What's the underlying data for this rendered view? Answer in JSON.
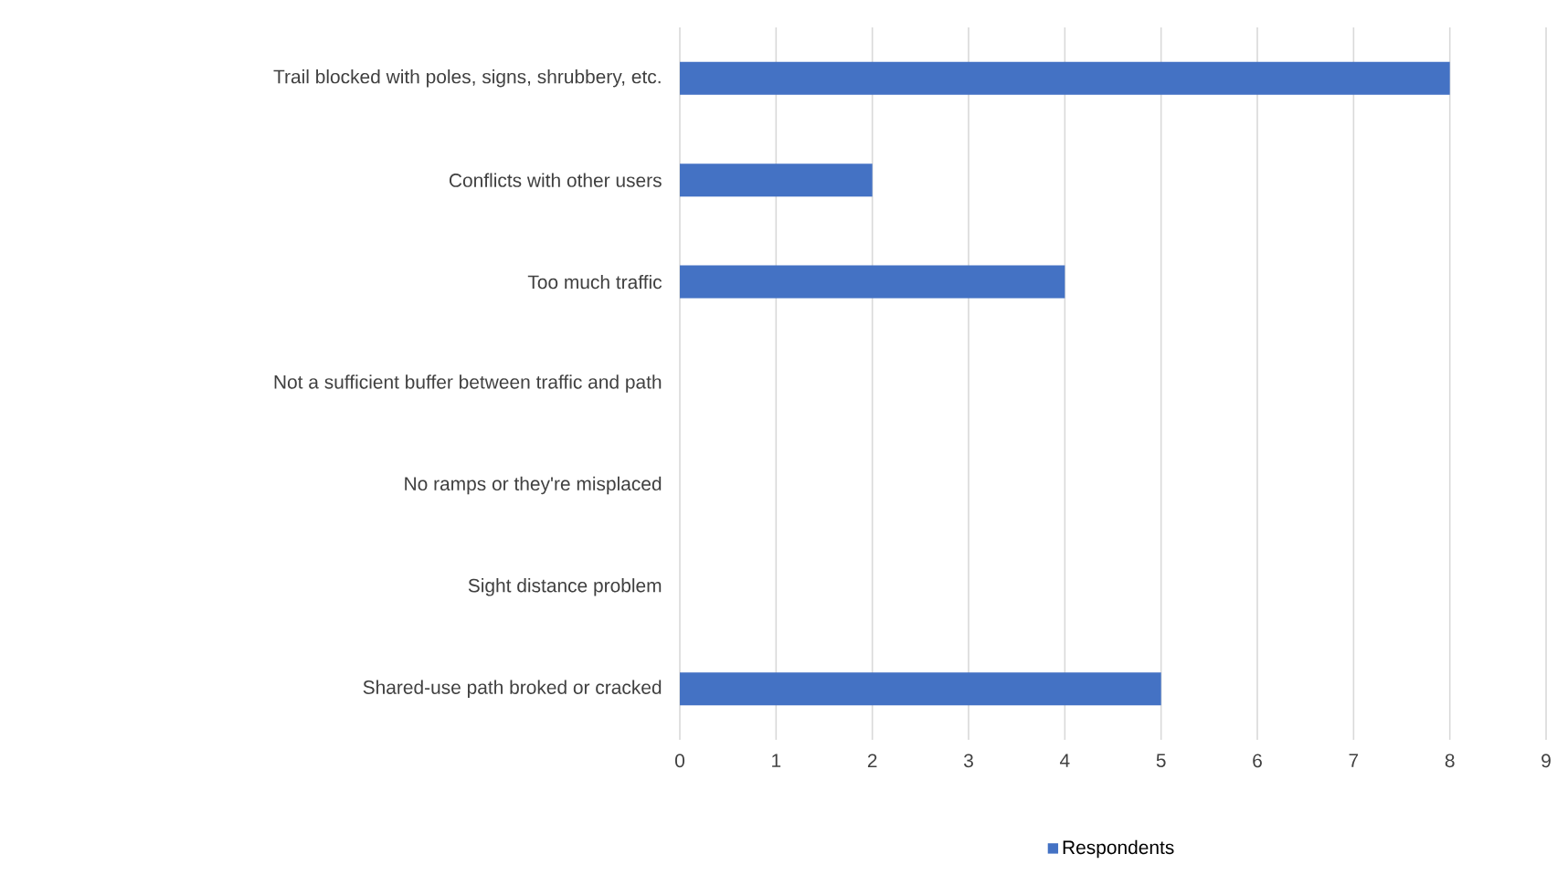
{
  "chart_data": {
    "type": "bar",
    "orientation": "horizontal",
    "categories": [
      "Trail blocked with poles, signs, shrubbery, etc.",
      "Conflicts with other users",
      "Too much traffic",
      "Not a sufficient buffer between traffic and path",
      "No ramps or they're misplaced",
      "Sight distance problem",
      "Shared-use path broked or cracked"
    ],
    "series": [
      {
        "name": "Respondents",
        "color": "#4472c4",
        "values": [
          8,
          2,
          4,
          0,
          0,
          0,
          5
        ]
      }
    ],
    "xlim": [
      0,
      9
    ],
    "xticks": [
      0,
      1,
      2,
      3,
      4,
      5,
      6,
      7,
      8,
      9
    ],
    "grid": "x",
    "legend": "bottom"
  }
}
